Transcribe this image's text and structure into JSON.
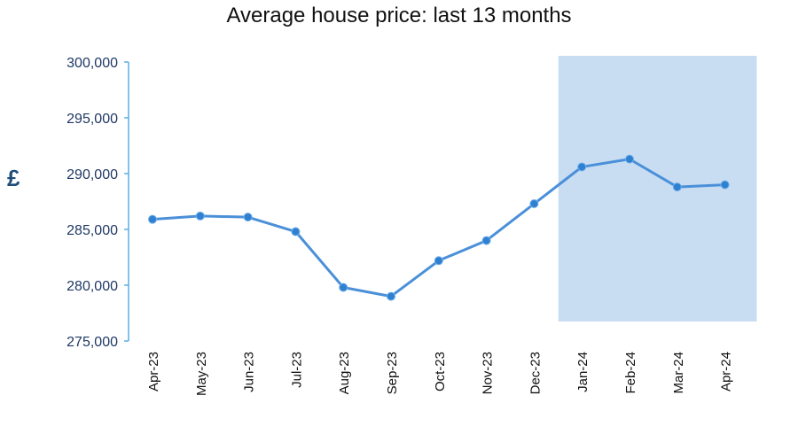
{
  "chart_data": {
    "type": "line",
    "title": "Average house price: last 13 months",
    "ylabel": "£",
    "xlabel": "",
    "categories": [
      "Apr-23",
      "May-23",
      "Jun-23",
      "Jul-23",
      "Aug-23",
      "Sep-23",
      "Oct-23",
      "Nov-23",
      "Dec-23",
      "Jan-24",
      "Feb-24",
      "Mar-24",
      "Apr-24"
    ],
    "series": [
      {
        "values": [
          285900,
          286200,
          286100,
          284800,
          279800,
          279000,
          282200,
          284000,
          287300,
          290600,
          291300,
          288800,
          289000
        ]
      }
    ],
    "ylim": [
      275000,
      300000
    ],
    "yticks": [
      275000,
      280000,
      285000,
      290000,
      295000,
      300000
    ],
    "ytick_labels": [
      "275,000",
      "280,000",
      "285,000",
      "290,000",
      "295,000",
      "300,000"
    ],
    "highlight": {
      "from": "Jan-24",
      "to": "Apr-24",
      "color": "#c9ddf2"
    },
    "grid": false,
    "legend": "none",
    "colors": {
      "line": "#4a90d9",
      "marker": "#2f80d1",
      "axis": "#5aaee6",
      "tick_text": "#1f3864",
      "unit_text": "#1f4e79"
    }
  }
}
